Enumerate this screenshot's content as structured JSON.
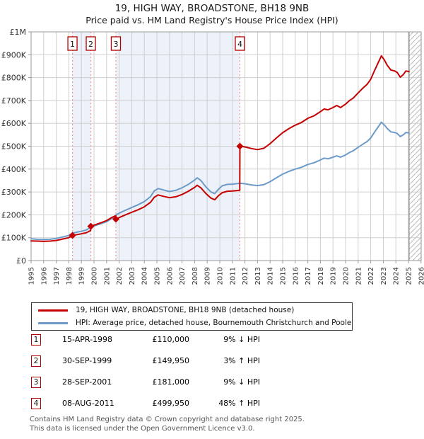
{
  "title": {
    "line1": "19, HIGH WAY, BROADSTONE, BH18 9NB",
    "line2": "Price paid vs. HM Land Registry's House Price Index (HPI)"
  },
  "chart_data": {
    "type": "line",
    "title": "Price paid vs. HM Land Registry's House Price Index (HPI)",
    "x_axis": {
      "labels": [
        "1995",
        "1996",
        "1997",
        "1998",
        "1999",
        "2000",
        "2001",
        "2002",
        "2003",
        "2004",
        "2005",
        "2006",
        "2007",
        "2008",
        "2009",
        "2010",
        "2011",
        "2012",
        "2013",
        "2014",
        "2015",
        "2016",
        "2017",
        "2018",
        "2019",
        "2020",
        "2021",
        "2022",
        "2023",
        "2024",
        "2025",
        "2026"
      ],
      "min": 1995,
      "max": 2026
    },
    "y_axis": {
      "min": 0,
      "max": 1000000,
      "ticks": [
        {
          "label": "£0",
          "value": 0
        },
        {
          "label": "£100K",
          "value": 100000
        },
        {
          "label": "£200K",
          "value": 200000
        },
        {
          "label": "£300K",
          "value": 300000
        },
        {
          "label": "£400K",
          "value": 400000
        },
        {
          "label": "£500K",
          "value": 500000
        },
        {
          "label": "£600K",
          "value": 600000
        },
        {
          "label": "£700K",
          "value": 700000
        },
        {
          "label": "£800K",
          "value": 800000
        },
        {
          "label": "£900K",
          "value": 900000
        },
        {
          "label": "£1M",
          "value": 1000000
        }
      ]
    },
    "grid": true,
    "ownership_bands": [
      [
        1998.29,
        1999.75
      ],
      [
        2001.74,
        2011.6
      ]
    ],
    "future_hatch_start": 2025.05,
    "colors": {
      "price_line": "#c40000",
      "hpi_line": "#6d9bc9",
      "marker_dash": "#f09595",
      "band_fill": "#edf1fa",
      "grid": "#cfcfcf",
      "frame": "#999999"
    },
    "series": [
      {
        "name": "19, HIGH WAY, BROADSTONE, BH18 9NB (detached house)",
        "color": "#c40000",
        "points": [
          [
            1995.0,
            86000
          ],
          [
            1995.5,
            85000
          ],
          [
            1996.0,
            84000
          ],
          [
            1996.5,
            85000
          ],
          [
            1997.0,
            88000
          ],
          [
            1997.5,
            94000
          ],
          [
            1998.0,
            100000
          ],
          [
            1998.29,
            110000
          ],
          [
            1998.7,
            114000
          ],
          [
            1999.0,
            117000
          ],
          [
            1999.4,
            122000
          ],
          [
            1999.73,
            131000
          ],
          [
            1999.75,
            149950
          ],
          [
            2000.0,
            155000
          ],
          [
            2000.5,
            164000
          ],
          [
            2001.0,
            175000
          ],
          [
            2001.4,
            188000
          ],
          [
            2001.73,
            196000
          ],
          [
            2001.74,
            181000
          ],
          [
            2002.0,
            188000
          ],
          [
            2002.5,
            200000
          ],
          [
            2003.0,
            211000
          ],
          [
            2003.5,
            222000
          ],
          [
            2004.0,
            235000
          ],
          [
            2004.5,
            255000
          ],
          [
            2004.8,
            277000
          ],
          [
            2005.1,
            287000
          ],
          [
            2005.5,
            281000
          ],
          [
            2006.0,
            275000
          ],
          [
            2006.5,
            279000
          ],
          [
            2007.0,
            289000
          ],
          [
            2007.5,
            303000
          ],
          [
            2008.0,
            320000
          ],
          [
            2008.2,
            329000
          ],
          [
            2008.5,
            318000
          ],
          [
            2008.9,
            293000
          ],
          [
            2009.3,
            273000
          ],
          [
            2009.6,
            266000
          ],
          [
            2009.9,
            284000
          ],
          [
            2010.2,
            297000
          ],
          [
            2010.6,
            303000
          ],
          [
            2011.0,
            304000
          ],
          [
            2011.3,
            306000
          ],
          [
            2011.59,
            307000
          ],
          [
            2011.6,
            499950
          ],
          [
            2012.0,
            497000
          ],
          [
            2012.5,
            490000
          ],
          [
            2013.0,
            485000
          ],
          [
            2013.5,
            491000
          ],
          [
            2014.0,
            511000
          ],
          [
            2014.5,
            536000
          ],
          [
            2015.0,
            559000
          ],
          [
            2015.5,
            577000
          ],
          [
            2016.0,
            592000
          ],
          [
            2016.5,
            604000
          ],
          [
            2017.0,
            622000
          ],
          [
            2017.5,
            633000
          ],
          [
            2018.0,
            651000
          ],
          [
            2018.3,
            663000
          ],
          [
            2018.6,
            659000
          ],
          [
            2019.0,
            669000
          ],
          [
            2019.3,
            678000
          ],
          [
            2019.6,
            669000
          ],
          [
            2020.0,
            684000
          ],
          [
            2020.3,
            699000
          ],
          [
            2020.6,
            710000
          ],
          [
            2021.0,
            733000
          ],
          [
            2021.4,
            755000
          ],
          [
            2021.7,
            770000
          ],
          [
            2022.0,
            793000
          ],
          [
            2022.3,
            830000
          ],
          [
            2022.6,
            866000
          ],
          [
            2022.85,
            895000
          ],
          [
            2023.1,
            876000
          ],
          [
            2023.3,
            855000
          ],
          [
            2023.6,
            833000
          ],
          [
            2023.9,
            829000
          ],
          [
            2024.1,
            823000
          ],
          [
            2024.35,
            802000
          ],
          [
            2024.6,
            814000
          ],
          [
            2024.8,
            829000
          ],
          [
            2025.05,
            826000
          ]
        ]
      },
      {
        "name": "HPI: Average price, detached house, Bournemouth Christchurch and Poole",
        "color": "#6d9bc9",
        "points": [
          [
            1995.0,
            95000
          ],
          [
            1995.5,
            93000
          ],
          [
            1996.0,
            92000
          ],
          [
            1996.5,
            93000
          ],
          [
            1997.0,
            97000
          ],
          [
            1997.5,
            103000
          ],
          [
            1998.0,
            110000
          ],
          [
            1998.29,
            120000
          ],
          [
            1998.7,
            125000
          ],
          [
            1999.0,
            128000
          ],
          [
            1999.4,
            134000
          ],
          [
            1999.74,
            146000
          ],
          [
            2000.0,
            151000
          ],
          [
            2000.5,
            160000
          ],
          [
            2001.0,
            170000
          ],
          [
            2001.4,
            183000
          ],
          [
            2001.74,
            199000
          ],
          [
            2002.0,
            207000
          ],
          [
            2002.5,
            220000
          ],
          [
            2003.0,
            232000
          ],
          [
            2003.5,
            244000
          ],
          [
            2004.0,
            258000
          ],
          [
            2004.5,
            280000
          ],
          [
            2004.8,
            305000
          ],
          [
            2005.1,
            315000
          ],
          [
            2005.5,
            309000
          ],
          [
            2006.0,
            302000
          ],
          [
            2006.5,
            307000
          ],
          [
            2007.0,
            318000
          ],
          [
            2007.5,
            333000
          ],
          [
            2008.0,
            352000
          ],
          [
            2008.2,
            362000
          ],
          [
            2008.5,
            350000
          ],
          [
            2008.9,
            322000
          ],
          [
            2009.3,
            300000
          ],
          [
            2009.6,
            293000
          ],
          [
            2009.9,
            312000
          ],
          [
            2010.2,
            327000
          ],
          [
            2010.6,
            333000
          ],
          [
            2011.0,
            334000
          ],
          [
            2011.3,
            336000
          ],
          [
            2011.6,
            338000
          ],
          [
            2012.0,
            336000
          ],
          [
            2012.5,
            331000
          ],
          [
            2013.0,
            328000
          ],
          [
            2013.5,
            332000
          ],
          [
            2014.0,
            345000
          ],
          [
            2014.5,
            362000
          ],
          [
            2015.0,
            378000
          ],
          [
            2015.5,
            390000
          ],
          [
            2016.0,
            400000
          ],
          [
            2016.5,
            408000
          ],
          [
            2017.0,
            420000
          ],
          [
            2017.5,
            428000
          ],
          [
            2018.0,
            440000
          ],
          [
            2018.3,
            448000
          ],
          [
            2018.6,
            445000
          ],
          [
            2019.0,
            452000
          ],
          [
            2019.3,
            458000
          ],
          [
            2019.6,
            452000
          ],
          [
            2020.0,
            462000
          ],
          [
            2020.3,
            472000
          ],
          [
            2020.6,
            480000
          ],
          [
            2021.0,
            495000
          ],
          [
            2021.4,
            510000
          ],
          [
            2021.7,
            520000
          ],
          [
            2022.0,
            536000
          ],
          [
            2022.3,
            561000
          ],
          [
            2022.6,
            585000
          ],
          [
            2022.85,
            605000
          ],
          [
            2023.1,
            592000
          ],
          [
            2023.3,
            578000
          ],
          [
            2023.6,
            563000
          ],
          [
            2023.9,
            560000
          ],
          [
            2024.1,
            556000
          ],
          [
            2024.35,
            542000
          ],
          [
            2024.6,
            550000
          ],
          [
            2024.8,
            560000
          ],
          [
            2025.05,
            558000
          ]
        ]
      }
    ],
    "markers": [
      {
        "num": "1",
        "date": "15-APR-1998",
        "year": 1998.29,
        "price": 110000
      },
      {
        "num": "2",
        "date": "30-SEP-1999",
        "year": 1999.75,
        "price": 149950
      },
      {
        "num": "3",
        "date": "28-SEP-2001",
        "year": 2001.74,
        "price": 181000
      },
      {
        "num": "4",
        "date": "08-AUG-2011",
        "year": 2011.6,
        "price": 499950
      }
    ],
    "legend_position": "bottom"
  },
  "legend": {
    "items": [
      {
        "label": "19, HIGH WAY, BROADSTONE, BH18 9NB (detached house)",
        "color": "#c40000"
      },
      {
        "label": "HPI: Average price, detached house, Bournemouth Christchurch and Poole",
        "color": "#6d9bc9"
      }
    ]
  },
  "table": {
    "rows": [
      {
        "num": "1",
        "date": "15-APR-1998",
        "price": "£110,000",
        "vs_hpi": "9% ↓ HPI"
      },
      {
        "num": "2",
        "date": "30-SEP-1999",
        "price": "£149,950",
        "vs_hpi": "3% ↑ HPI"
      },
      {
        "num": "3",
        "date": "28-SEP-2001",
        "price": "£181,000",
        "vs_hpi": "9% ↓ HPI"
      },
      {
        "num": "4",
        "date": "08-AUG-2011",
        "price": "£499,950",
        "vs_hpi": "48% ↑ HPI"
      }
    ]
  },
  "footer": {
    "line1": "Contains HM Land Registry data © Crown copyright and database right 2025.",
    "line2": "This data is licensed under the Open Government Licence v3.0."
  }
}
